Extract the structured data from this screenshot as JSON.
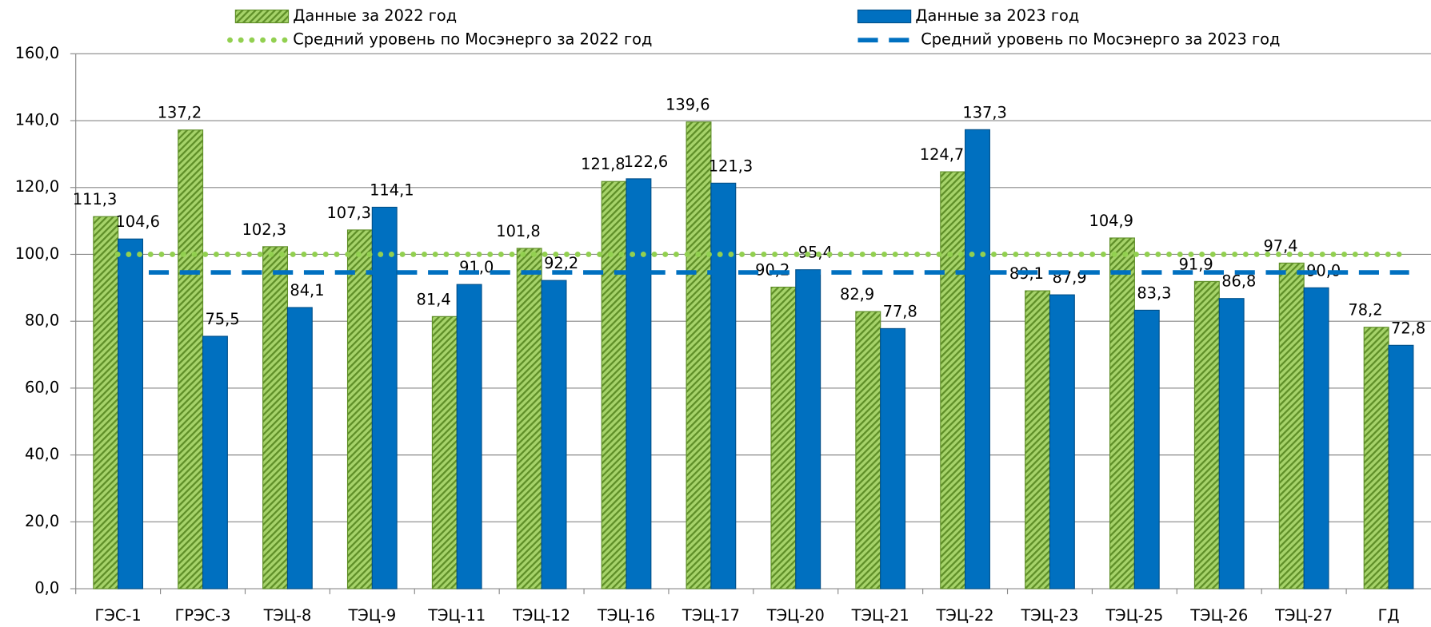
{
  "chart_data": {
    "type": "bar",
    "categories": [
      "ГЭС-1",
      "ГРЭС-3",
      "ТЭЦ-8",
      "ТЭЦ-9",
      "ТЭЦ-11",
      "ТЭЦ-12",
      "ТЭЦ-16",
      "ТЭЦ-17",
      "ТЭЦ-20",
      "ТЭЦ-21",
      "ТЭЦ-22",
      "ТЭЦ-23",
      "ТЭЦ-25",
      "ТЭЦ-26",
      "ТЭЦ-27",
      "ГД"
    ],
    "series": [
      {
        "name": "Данные за 2022 год",
        "color": "#92c84a",
        "pattern": "hatch",
        "values": [
          111.3,
          137.2,
          102.3,
          107.3,
          81.4,
          101.8,
          121.8,
          139.6,
          90.2,
          82.9,
          124.7,
          89.1,
          104.9,
          91.9,
          97.4,
          78.2
        ],
        "value_labels": [
          "111,3",
          "137,2",
          "102,3",
          "107,3",
          "81,4",
          "101,8",
          "121,8",
          "139,6",
          "90,2",
          "82,9",
          "124,7",
          "89,1",
          "104,9",
          "91,9",
          "97,4",
          "78,2"
        ]
      },
      {
        "name": "Данные за 2023 год",
        "color": "#0070c0",
        "values": [
          104.6,
          75.5,
          84.1,
          114.1,
          91.0,
          92.2,
          122.6,
          121.3,
          95.4,
          77.8,
          137.3,
          87.9,
          83.3,
          86.8,
          90.0,
          72.8
        ],
        "value_labels": [
          "104,6",
          "75,5",
          "84,1",
          "114,1",
          "91,0",
          "92,2",
          "122,6",
          "121,3",
          "95,4",
          "77,8",
          "137,3",
          "87,9",
          "83,3",
          "86,8",
          "90,0",
          "72,8"
        ]
      }
    ],
    "reference_lines": [
      {
        "name": "Средний уровень по Мосэнерго за 2022 год",
        "color": "#92d050",
        "style": "dotted",
        "value": 100.0
      },
      {
        "name": "Средний уровень по Мосэнерго за 2023 год",
        "color": "#0070c0",
        "style": "dashed",
        "value": 94.6
      }
    ],
    "ylim": [
      0,
      160
    ],
    "yticks": [
      {
        "value": 0,
        "label": "0,0"
      },
      {
        "value": 20,
        "label": "20,0"
      },
      {
        "value": 40,
        "label": "40,0"
      },
      {
        "value": 60,
        "label": "60,0"
      },
      {
        "value": 80,
        "label": "80,0"
      },
      {
        "value": 100,
        "label": "100,0"
      },
      {
        "value": 120,
        "label": "120,0"
      },
      {
        "value": 140,
        "label": "140,0"
      },
      {
        "value": 160,
        "label": "160,0"
      }
    ],
    "grid": true
  }
}
